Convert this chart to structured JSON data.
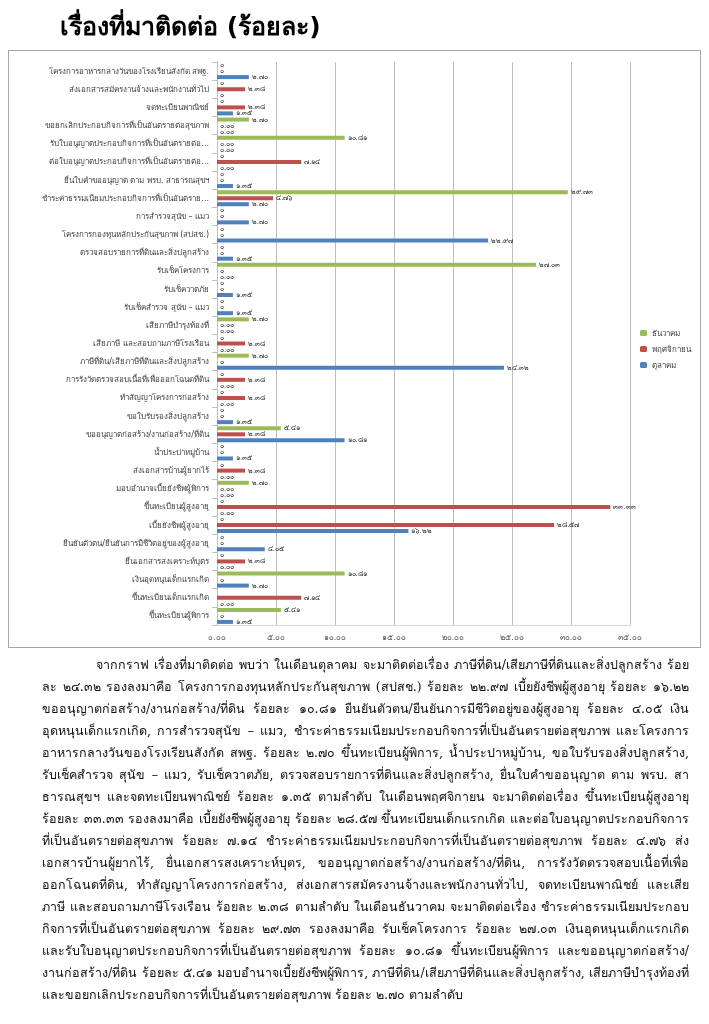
{
  "chart_data": {
    "type": "bar",
    "orientation": "horizontal",
    "title": "เรื่องที่มาติดต่อ (ร้อยละ)",
    "categories": [
      "โครงการอาหารกลางวันของโรงเรียนสังกัด สพฐ.",
      "ส่งเอกสารสมัครงานจ้างและพนักงานทั่วไป",
      "จดทะเบียนพาณิชย์",
      "ขอยกเลิกประกอบกิจการที่เป็นอันตรายต่อสุขภาพ",
      "รับใบอนุญาตประกอบกิจการที่เป็นอันตรายต่อ...",
      "ต่อใบอนุญาตประกอบกิจการที่เป็นอันตรายต่อ...",
      "ยื่นใบคำขออนุญาต ตาม พรบ. สาธารณสุขฯ",
      "ชำระค่าธรรมเนียมประกอบกิจการที่เป็นอันตราย...",
      "การสำรวจสุนัข – แมว",
      "โครงการกองทุนหลักประกันสุขภาพ (สปสช.)",
      "ตรวจสอบรายการที่ดินและสิ่งปลูกสร้าง",
      "รับเช็คโครงการ",
      "รับเช็ควาตภัย",
      "รับเช็คสำรวจ สุนัข – แมว",
      "เสียภาษีบำรุงท้องที่",
      "เสียภาษี และสอบถามภาษีโรงเรือน",
      "ภาษีที่ดิน/เสียภาษีที่ดินและสิ่งปลูกสร้าง",
      "การรังวัดตรวจสอบเนื้อที่เพื่อออกโฉนดที่ดิน",
      "ทำสัญญาโครงการก่อสร้าง",
      "ขอใบรับรองสิ่งปลูกสร้าง",
      "ขออนุญาตก่อสร้าง/งานก่อสร้าง/ที่ดิน",
      "น้ำประปาหมู่บ้าน",
      "ส่งเอกสารบ้านผู้ยากไร้",
      "มอบอำนาจเบี้ยยังชีพผู้พิการ",
      "ขึ้นทะเบียนผู้สูงอายุ",
      "เบี้ยยังชีพผู้สูงอายุ",
      "ยืนยันตัวตน/ยืนยันการมีชีวิตอยู่ของผู้สูงอายุ",
      "ยื่นเอกสารสงเคราะห์บุตร",
      "เงินอุดหนุนเด็กแรกเกิด",
      "ขึ้นทะเบียนเด็กแรกเกิด",
      "ขึ้นทะเบียนผู้พิการ"
    ],
    "series": [
      {
        "name": "ธันวาคม",
        "color": "#9bbb59",
        "values": [
          0,
          0,
          0,
          2.7,
          10.81,
          0,
          0,
          29.73,
          0,
          0,
          0,
          27.03,
          0,
          0,
          2.7,
          0,
          2.7,
          0,
          0,
          0,
          5.41,
          0,
          0,
          2.7,
          0,
          0,
          0,
          0,
          10.81,
          null,
          5.41
        ],
        "value_labels": [
          "๐",
          "๐",
          "๐",
          "๒.๗๐",
          "๑๐.๘๑",
          "๐",
          "๐",
          "๒๙.๗๓",
          "๐",
          "๐",
          "๐",
          "๒๗.๐๓",
          "๐",
          "๐",
          "๒.๗๐",
          "๐",
          "๒.๗๐",
          "๐",
          "๐",
          "๐",
          "๕.๔๑",
          "๐",
          "๐",
          "๒.๗๐",
          "๐",
          "๐",
          "๐",
          "๐",
          "๑๐.๘๑",
          null,
          "๕.๔๑"
        ]
      },
      {
        "name": "พฤศจิกายน",
        "color": "#c0504d",
        "values": [
          0,
          2.38,
          2.38,
          0,
          0,
          7.14,
          0,
          4.76,
          0,
          0,
          0,
          0,
          0,
          0,
          0,
          2.38,
          0,
          2.38,
          2.38,
          0,
          2.38,
          0,
          2.38,
          0,
          33.33,
          28.57,
          0,
          2.38,
          0,
          7.14,
          0
        ],
        "value_labels": [
          "๐",
          "๒.๓๘",
          "๒.๓๘",
          "๐.๐๐",
          "๐.๐๐",
          "๗.๑๔",
          "๐",
          "๔.๗๖",
          "๐",
          "๐",
          "๐",
          "๐",
          "๐",
          "๐",
          "๐.๐๐",
          "๒.๓๘",
          "๐",
          "๒.๓๘",
          "๒.๓๘",
          "๐",
          "๒.๓๘",
          "๐",
          "๒.๓๘",
          "๐.๐๐",
          "๓๓.๓๓",
          "๒๘.๕๗",
          "๐",
          "๒.๓๘",
          "๐",
          "๗.๑๔",
          "๐"
        ]
      },
      {
        "name": "ตุลาคม",
        "color": "#4f81bd",
        "values": [
          2.7,
          0,
          1.35,
          0,
          0,
          0,
          1.35,
          2.7,
          2.7,
          22.97,
          1.35,
          0,
          1.35,
          1.35,
          0,
          0,
          24.32,
          0,
          0,
          1.35,
          10.81,
          1.35,
          0,
          0,
          0,
          16.22,
          4.05,
          0,
          2.7,
          0,
          1.35
        ],
        "value_labels": [
          "๒.๗๐",
          "๐",
          "๑.๓๕",
          "๐.๐๐",
          "๐.๐๐",
          "๐.๐๐",
          "๑.๓๕",
          "๒.๗๐",
          "๒.๗๐",
          "๒๒.๙๗",
          "๑.๓๕",
          "๐.๐๐",
          "๑.๓๕",
          "๑.๓๕",
          "๐.๐๐",
          "๐.๐๐",
          "๒๔.๓๒",
          "๐.๐๐",
          "๐.๐๐",
          "๑.๓๕",
          "๑๐.๘๑",
          "๑.๓๕",
          "๐.๐๐",
          "๐.๐๐",
          "๐.๐๐",
          "๑๖.๒๒",
          "๔.๐๕",
          "๐.๐๐",
          "๒.๗๐",
          "๐.๐๐",
          "๑.๓๕"
        ]
      }
    ],
    "xlim": [
      0,
      35
    ],
    "xticks": [
      {
        "value": 0,
        "label": "๐.๐๐"
      },
      {
        "value": 5,
        "label": "๕.๐๐"
      },
      {
        "value": 10,
        "label": "๑๐.๐๐"
      },
      {
        "value": 15,
        "label": "๑๕.๐๐"
      },
      {
        "value": 20,
        "label": "๒๐.๐๐"
      },
      {
        "value": 25,
        "label": "๒๕.๐๐"
      },
      {
        "value": 30,
        "label": "๓๐.๐๐"
      },
      {
        "value": 35,
        "label": "๓๕.๐๐"
      }
    ],
    "grid": "x",
    "legend": "right",
    "annotations": [
      "จากกราฟ เรื่องที่มาติดต่อ พบว่า ในเดือนตุลาคม จะมาติดต่อเรื่อง ภาษีที่ดิน/เสียภาษีที่ดินและสิ่งปลูกสร้าง ร้อยละ ๒๔.๓๒ รองลงมาคือ โครงการกองทุนหลักประกันสุขภาพ (สปสช.) ร้อยละ ๒๒.๙๗ เบี้ยยังชีพผู้สูงอายุ ร้อยละ ๑๖.๒๒ ขออนุญาตก่อสร้าง/งานก่อสร้าง/ที่ดิน ร้อยละ ๑๐.๘๑ ยืนยันตัวตน/ยืนยันการมีชีวิตอยู่ของผู้สูงอายุ ร้อยละ ๔.๐๕ เงินอุดหนุนเด็กแรกเกิด, การสำรวจสุนัข – แมว, ชำระค่าธรรมเนียมประกอบกิจการที่เป็นอันตรายต่อสุขภาพ และโครงการอาหารกลางวันของโรงเรียนสังกัด สพฐ. ร้อยละ ๒.๗๐ ขึ้นทะเบียนผู้พิการ, น้ำประปาหมู่บ้าน, ขอใบรับรองสิ่งปลูกสร้าง, รับเช็คสำรวจ สุนัข – แมว, รับเช็ควาตภัย, ตรวจสอบรายการที่ดินและสิ่งปลูกสร้าง, ยื่นใบคำขออนุญาต ตาม พรบ. สาธารณสุขฯ และจดทะเบียนพาณิชย์ ร้อยละ ๑.๓๕ ตามลำดับ ในเดือนพฤศจิกายน จะมาติดต่อเรื่อง ขึ้นทะเบียนผู้สูงอายุ ร้อยละ ๓๓.๓๓ รองลงมาคือ เบี้ยยังชีพผู้สูงอายุ ร้อยละ ๒๘.๕๗ ขึ้นทะเบียนเด็กแรกเกิด และต่อใบอนุญาตประกอบกิจการที่เป็นอันตรายต่อสุขภาพ ร้อยละ ๗.๑๔ ชำระค่าธรรมเนียมประกอบกิจการที่เป็นอันตรายต่อสุขภาพ ร้อยละ ๔.๗๖ ส่งเอกสารบ้านผู้ยากไร้, ยื่นเอกสารสงเคราะห์บุตร, ขออนุญาตก่อสร้าง/งานก่อสร้าง/ที่ดิน, การรังวัดตรวจสอบเนื้อที่เพื่อออกโฉนดที่ดิน, ทำสัญญาโครงการก่อสร้าง, ส่งเอกสารสมัครงานจ้างและพนักงานทั่วไป, จดทะเบียนพาณิชย์ และเสียภาษี และสอบถามภาษีโรงเรือน ร้อยละ ๒.๓๘ ตามลำดับ ในเดือนธันวาคม จะมาติดต่อเรื่อง ชำระค่าธรรมเนียมประกอบกิจการที่เป็นอันตรายต่อสุขภาพ ร้อยละ ๒๙.๗๓ รองลงมาคือ รับเช็คโครงการ ร้อยละ ๒๗.๐๓ เงินอุดหนุนเด็กแรกเกิด และรับใบอนุญาตประกอบกิจการที่เป็นอันตรายต่อสุขภาพ ร้อยละ ๑๐.๘๑ ขึ้นทะเบียนผู้พิการ และขออนุญาตก่อสร้าง/งานก่อสร้าง/ที่ดิน ร้อยละ ๕.๔๑ มอบอำนาจเบี้ยยังชีพผู้พิการ, ภาษีที่ดิน/เสียภาษีที่ดินและสิ่งปลูกสร้าง, เสียภาษีบำรุงท้องที่ และขอยกเลิกประกอบกิจการที่เป็นอันตรายต่อสุขภาพ ร้อยละ ๒.๗๐ ตามลำดับ"
    ]
  }
}
